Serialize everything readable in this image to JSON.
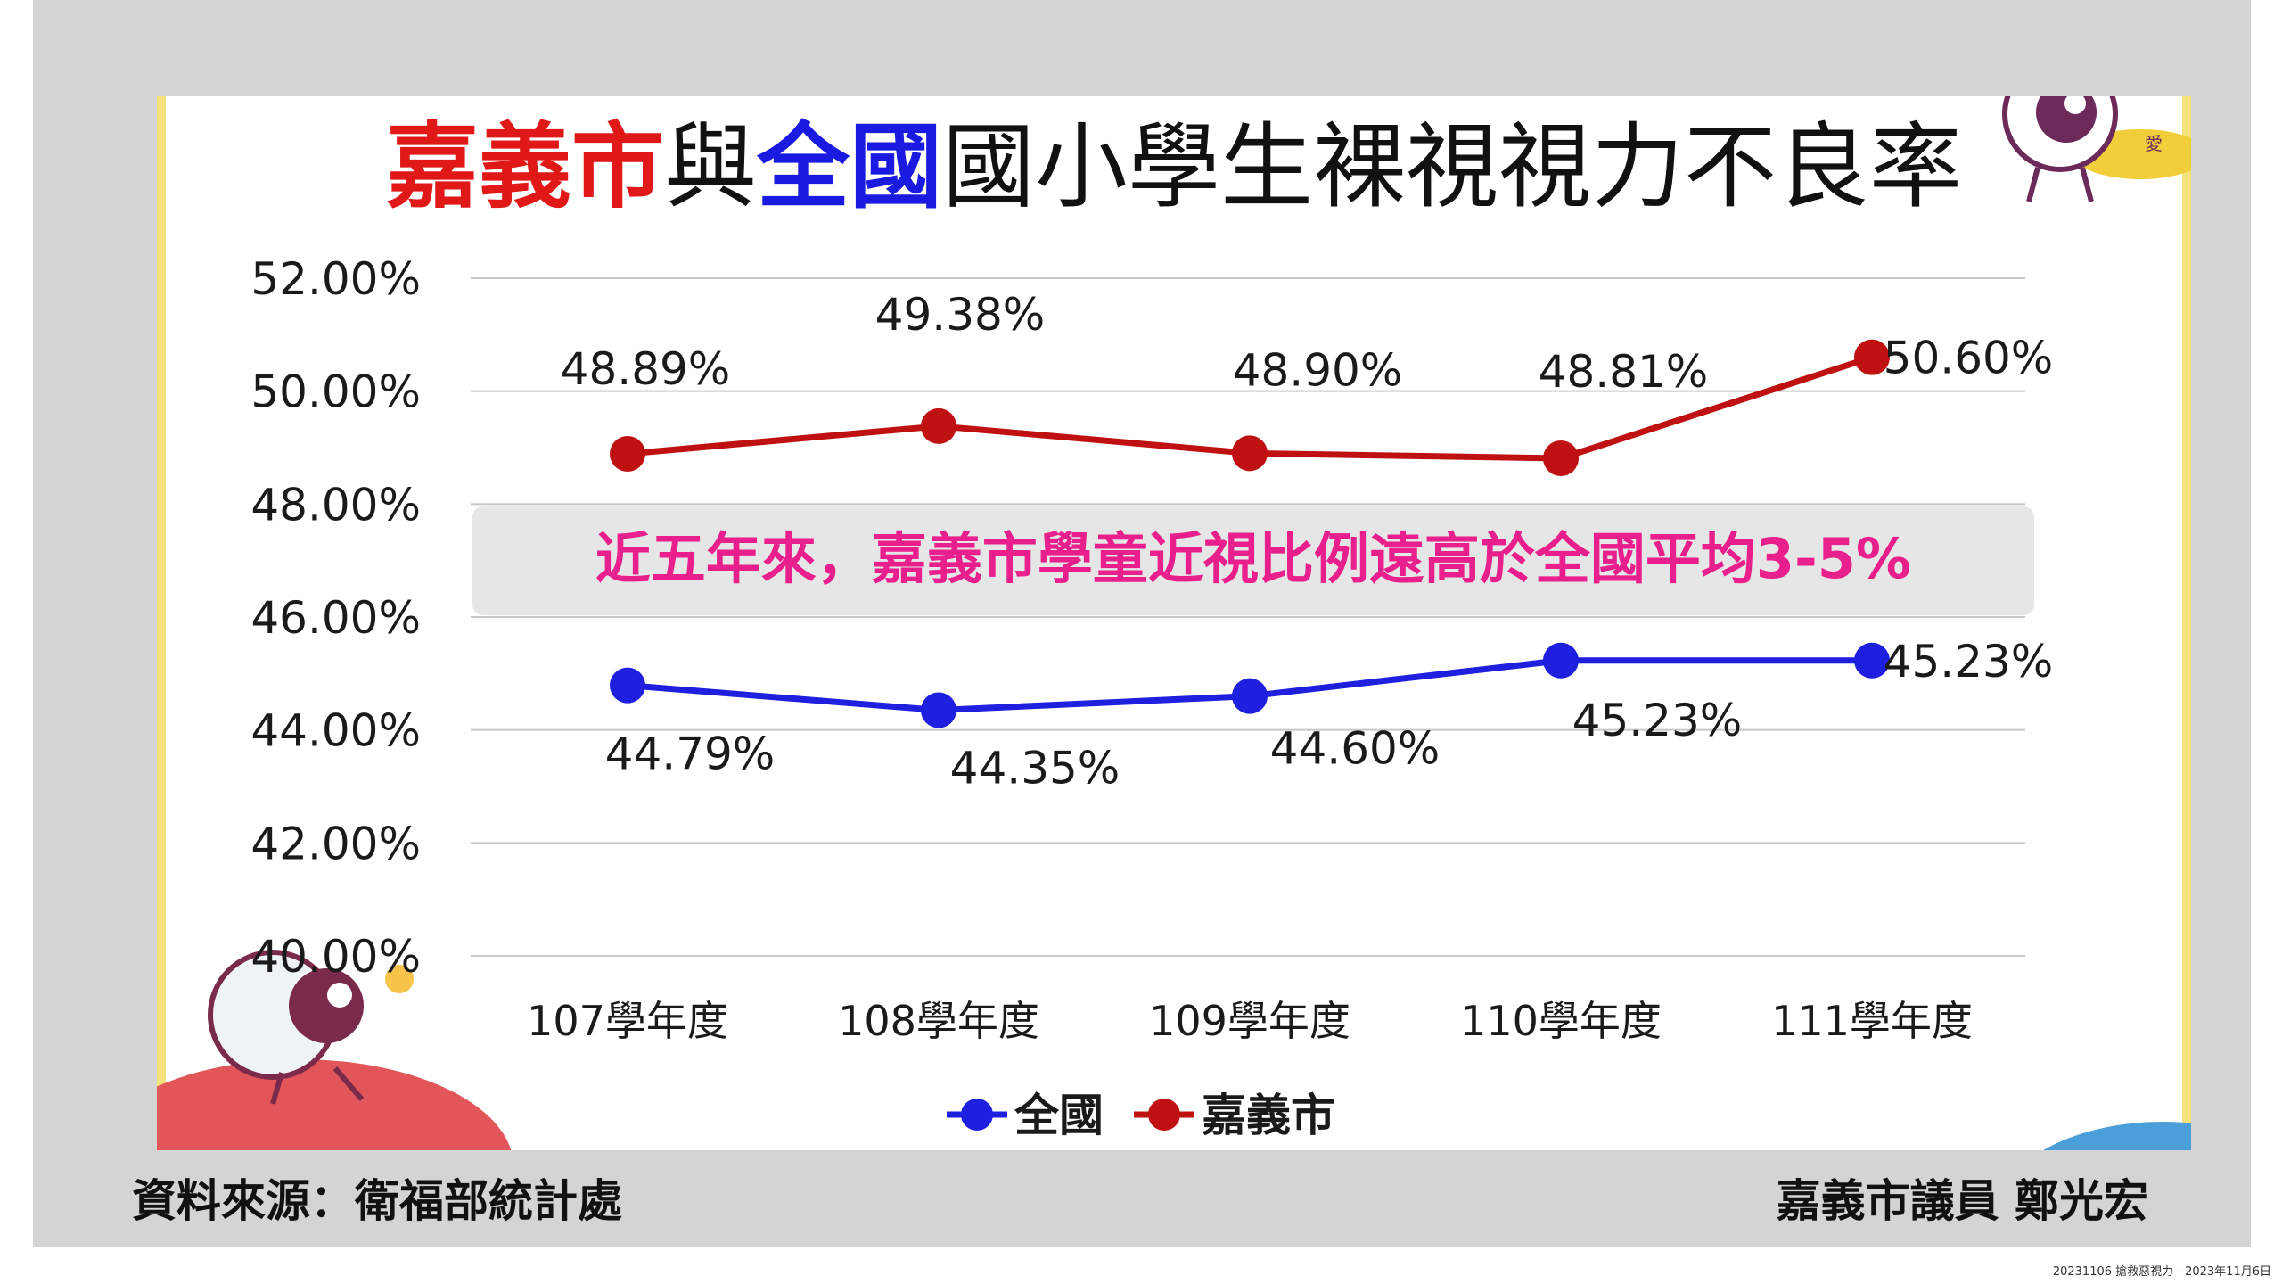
{
  "title": {
    "part_red": "嘉義市",
    "part_mid": "與",
    "part_blue": "全國",
    "part_rest": "國小學生裸視視力不良率"
  },
  "chart_data": {
    "type": "line",
    "categories": [
      "107學年度",
      "108學年度",
      "109學年度",
      "110學年度",
      "111學年度"
    ],
    "y_ticks": [
      "52.00%",
      "50.00%",
      "48.00%",
      "46.00%",
      "44.00%",
      "42.00%",
      "40.00%"
    ],
    "ylim": [
      40,
      52
    ],
    "grid": true,
    "legend_position": "bottom",
    "series": [
      {
        "name": "全國",
        "color": "#1f1fe0",
        "values": [
          44.79,
          44.35,
          44.6,
          45.23,
          45.23
        ],
        "labels": [
          "44.79%",
          "44.35%",
          "44.60%",
          "45.23%",
          "45.23%"
        ]
      },
      {
        "name": "嘉義市",
        "color": "#bf1111",
        "values": [
          48.89,
          49.38,
          48.9,
          48.81,
          50.6
        ],
        "labels": [
          "48.89%",
          "49.38%",
          "48.90%",
          "48.81%",
          "50.60%"
        ]
      }
    ],
    "annotation": "近五年來，嘉義市學童近視比例遠高於全國平均3-5%"
  },
  "source": "資料來源：衛福部統計處",
  "author": "嘉義市議員 鄭光宏",
  "footer_note": "20231106 搶救惡視力 - 2023年11月6日"
}
